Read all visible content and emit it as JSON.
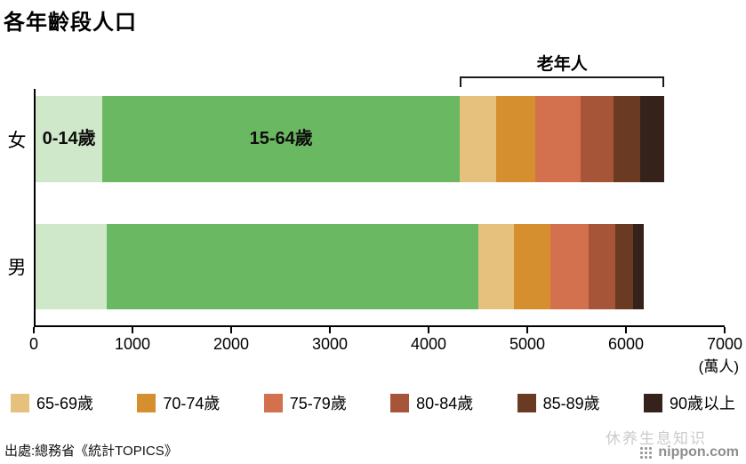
{
  "title": "各年齡段人口",
  "source": "出處:總務省《統計TOPICS》",
  "footer": {
    "watermark": "休养生息知识",
    "logo": "nippon.com"
  },
  "chart_data": {
    "type": "bar",
    "orientation": "horizontal",
    "stacked": true,
    "title": "各年齡段人口",
    "x_unit": "(萬人)",
    "xlim": [
      0,
      7000
    ],
    "xmax": 7000,
    "xticks": [
      0,
      1000,
      2000,
      3000,
      4000,
      5000,
      6000,
      7000
    ],
    "grid": false,
    "legend_position": "bottom",
    "age_groups": [
      "0-14歲",
      "15-64歲",
      "65-69歲",
      "70-74歲",
      "75-79歲",
      "80-84歲",
      "85-89歲",
      "90歲以上"
    ],
    "colors": [
      "#cfe8c9",
      "#6bb862",
      "#e6c17e",
      "#d68f2e",
      "#d3704d",
      "#a65539",
      "#6b3a22",
      "#35221a"
    ],
    "series": [
      {
        "name": "女",
        "values": [
          680,
          3630,
          370,
          400,
          460,
          330,
          270,
          250
        ]
      },
      {
        "name": "男",
        "values": [
          720,
          3780,
          360,
          370,
          390,
          270,
          180,
          110
        ]
      }
    ],
    "elderly_start_index": 2,
    "bracket_label": "老年人",
    "in_bar_labels": [
      {
        "series": 0,
        "segment": 0,
        "text": "0-14歲"
      },
      {
        "series": 0,
        "segment": 1,
        "text": "15-64歲"
      }
    ],
    "legend_labels": [
      "65-69歲",
      "70-74歲",
      "75-79歲",
      "80-84歲",
      "85-89歲",
      "90歲以上"
    ]
  }
}
